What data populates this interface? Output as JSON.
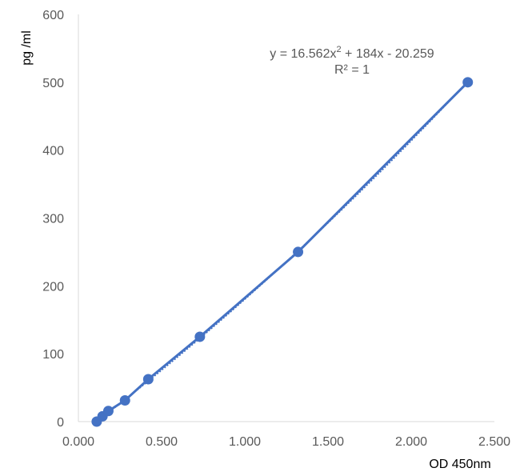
{
  "chart_data": {
    "type": "scatter",
    "title": "",
    "xlabel": "OD 450nm",
    "ylabel": "pg /ml",
    "xlim": [
      0,
      2.5
    ],
    "ylim": [
      0,
      600
    ],
    "x_ticks": [
      "0.000",
      "0.500",
      "1.000",
      "1.500",
      "2.000",
      "2.500"
    ],
    "y_ticks": [
      "0",
      "100",
      "200",
      "300",
      "400",
      "500",
      "600"
    ],
    "grid": false,
    "legend": "none",
    "series": [
      {
        "color": "#4472c4",
        "x": [
          0.11,
          0.145,
          0.18,
          0.28,
          0.42,
          0.73,
          1.32,
          2.34
        ],
        "y": [
          0,
          7.8,
          15.6,
          31.25,
          62.5,
          125,
          250,
          500
        ]
      }
    ],
    "trendline": {
      "type": "polynomial",
      "equation": "y = 16.562x² + 184x - 20.259",
      "equation_parts": [
        "y = 16.562x",
        "2",
        " + 184x - 20.259"
      ],
      "r_squared": "R² = 1"
    }
  }
}
